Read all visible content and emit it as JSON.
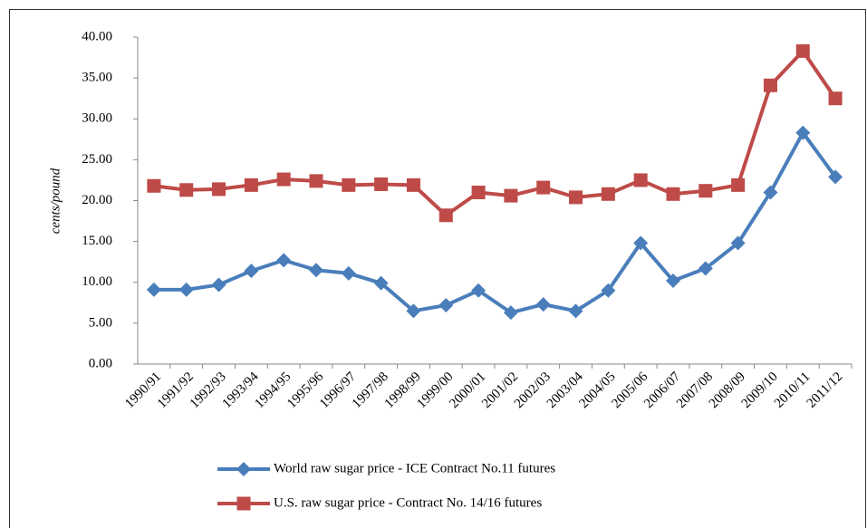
{
  "chart_data": {
    "type": "line",
    "y_label": "cents/pound",
    "categories": [
      "1990/91",
      "1991/92",
      "1992/93",
      "1993/94",
      "1994/95",
      "1995/96",
      "1996/97",
      "1997/98",
      "1998/99",
      "1999/00",
      "2000/01",
      "2001/02",
      "2002/03",
      "2003/04",
      "2004/05",
      "2005/06",
      "2006/07",
      "2007/08",
      "2008/09",
      "2009/10",
      "2010/11",
      "2011/12"
    ],
    "series": [
      {
        "name": "World raw sugar price - ICE Contract No.11 futures",
        "color": "#4a7ebb",
        "marker": "diamond",
        "values": [
          9.1,
          9.1,
          9.7,
          11.4,
          12.7,
          11.5,
          11.1,
          9.9,
          6.5,
          7.2,
          9.0,
          6.3,
          7.3,
          6.5,
          9.0,
          14.8,
          10.2,
          11.7,
          14.8,
          21.0,
          28.3,
          22.9
        ]
      },
      {
        "name": "U.S. raw sugar price - Contract No. 14/16 futures",
        "color": "#be4b48",
        "marker": "square",
        "values": [
          21.8,
          21.3,
          21.4,
          21.9,
          22.6,
          22.4,
          21.9,
          22.0,
          21.9,
          18.2,
          21.0,
          20.6,
          21.6,
          20.4,
          20.8,
          22.5,
          20.8,
          21.2,
          21.9,
          34.1,
          38.3,
          32.5
        ]
      }
    ],
    "ylim": [
      0,
      40
    ],
    "yticks": [
      {
        "value": 0,
        "label": "0.00"
      },
      {
        "value": 5,
        "label": "5.00"
      },
      {
        "value": 10,
        "label": "10.00"
      },
      {
        "value": 15,
        "label": "15.00"
      },
      {
        "value": 20,
        "label": "20.00"
      },
      {
        "value": 25,
        "label": "25.00"
      },
      {
        "value": 30,
        "label": "30.00"
      },
      {
        "value": 35,
        "label": "35.00"
      },
      {
        "value": 40,
        "label": "40.00"
      }
    ],
    "grid": false,
    "legend": "bottom"
  }
}
